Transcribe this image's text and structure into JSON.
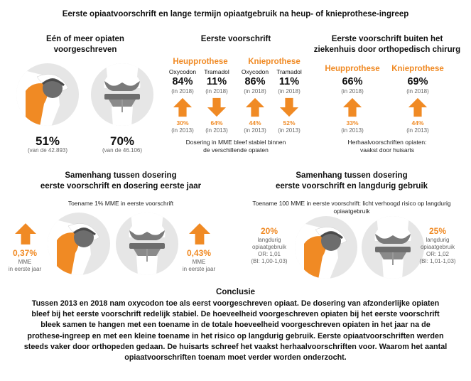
{
  "title": "Eerste opiaatvoorschrift en lange termijn opiaatgebruik na heup- of knieprothese-ingreep",
  "colors": {
    "accent": "#f08a24",
    "bone": "#e6e6e6",
    "implant": "#6d6d6d"
  },
  "panel1": {
    "heading": "Eén of meer opiaten voorgeschreven",
    "hip": {
      "value": "51%",
      "note": "(van de 42.893)",
      "icon": "hip-prosthesis-icon"
    },
    "knee": {
      "value": "70%",
      "note": "(van de 46.106)",
      "icon": "knee-prosthesis-icon"
    }
  },
  "panel2": {
    "heading": "Eerste voorschrift",
    "hip_label": "Heupprothese",
    "knee_label": "Knieprothese",
    "cols": [
      {
        "drug": "Oxycodon",
        "value": "84%",
        "year_2018": "(in 2018)",
        "arrow": "up",
        "past": "30%",
        "year_2013": "(in 2013)"
      },
      {
        "drug": "Tramadol",
        "value": "11%",
        "year_2018": "(in 2018)",
        "arrow": "down",
        "past": "64%",
        "year_2013": "(in 2013)"
      },
      {
        "drug": "Oxycodon",
        "value": "86%",
        "year_2018": "(in 2018)",
        "arrow": "up",
        "past": "44%",
        "year_2013": "(in 2013)"
      },
      {
        "drug": "Tramadol",
        "value": "11%",
        "year_2018": "(in 2018)",
        "arrow": "down",
        "past": "52%",
        "year_2013": "(in 2013)"
      }
    ],
    "note_line1": "Dosering in MME bleef stabiel binnen",
    "note_line2": "de verschillende opiaten"
  },
  "panel3": {
    "heading_line1": "Eerste voorschrift buiten het",
    "heading_line2": "ziekenhuis door orthopedisch chirurg",
    "hip_label": "Heupprothese",
    "knee_label": "Knieprothese",
    "hip": {
      "value": "66%",
      "year_2018": "(in 2018)",
      "past": "33%",
      "year_2013": "(in 2013)"
    },
    "knee": {
      "value": "69%",
      "year_2018": "(in 2018)",
      "past": "44%",
      "year_2013": "(in 2013)"
    },
    "note_line1": "Herhaalvoorschriften opiaten:",
    "note_line2": "vaakst door huisarts"
  },
  "panel4": {
    "heading_line1": "Samenhang tussen dosering",
    "heading_line2": "eerste voorschrift en dosering eerste jaar",
    "subtitle": "Toename 1% MME in eerste voorschrift",
    "hip": {
      "value": "0,37%",
      "line1": "MME",
      "line2": "in eerste jaar"
    },
    "knee": {
      "value": "0,43%",
      "line1": "MME",
      "line2": "in eerste jaar"
    }
  },
  "panel5": {
    "heading_line1": "Samenhang tussen dosering",
    "heading_line2": "eerste voorschrift en langdurig gebruik",
    "subtitle_line1": "Toename 100 MME in eerste voorschrift: licht verhoogd risico op langdurig",
    "subtitle_line2": "opiaatgebruik",
    "hip": {
      "value": "20%",
      "line1": "langdurig",
      "line2": "opiaatgebruik",
      "or": "OR: 1,01",
      "ci": "(BI: 1,00-1,03)"
    },
    "knee": {
      "value": "25%",
      "line1": "langdurig",
      "line2": "opiaatgebruik",
      "or": "OR: 1,02",
      "ci": "(BI: 1,01-1,03)"
    }
  },
  "conclusion": {
    "heading": "Conclusie",
    "lines": [
      "Tussen 2013 en 2018 nam oxycodon toe als eerst voorgeschreven opiaat. De dosering van afzonderlijke opiaten",
      "bleef bij het eerste voorschrift redelijk stabiel. De hoeveelheid voorgeschreven opiaten bij het eerste voorschrift",
      "bleek samen te hangen met een toename in de totale hoeveelheid voorgeschreven opiaten in het jaar na de",
      "prothese-ingreep en met een kleine toename in het risico op langdurig gebruik. Eerste opiaatvoorschriften werden",
      "steeds vaker door orthopeden gedaan. De huisarts schreef het vaakst herhaalvoorschriften voor. Waarom het aantal",
      "opiaatvoorschriften toenam moet verder worden onderzocht."
    ]
  }
}
